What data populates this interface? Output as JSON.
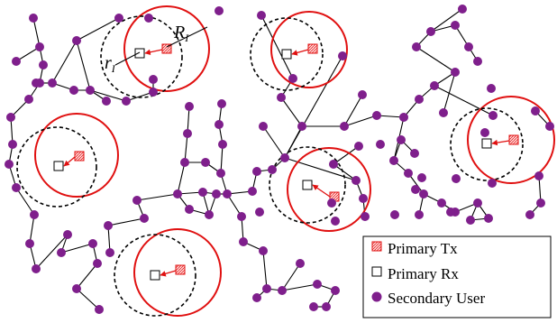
{
  "annotations": {
    "outer_radius_label": "R",
    "outer_radius_sub": "I",
    "inner_radius_label": "r",
    "inner_radius_sub": "I"
  },
  "legend": {
    "primary_tx": "Primary Tx",
    "primary_rx": "Primary Rx",
    "secondary_user": "Secondary User"
  },
  "colors": {
    "secondary_user": "#7f1f8c",
    "primary": "#e01010",
    "link": "#000000"
  }
}
